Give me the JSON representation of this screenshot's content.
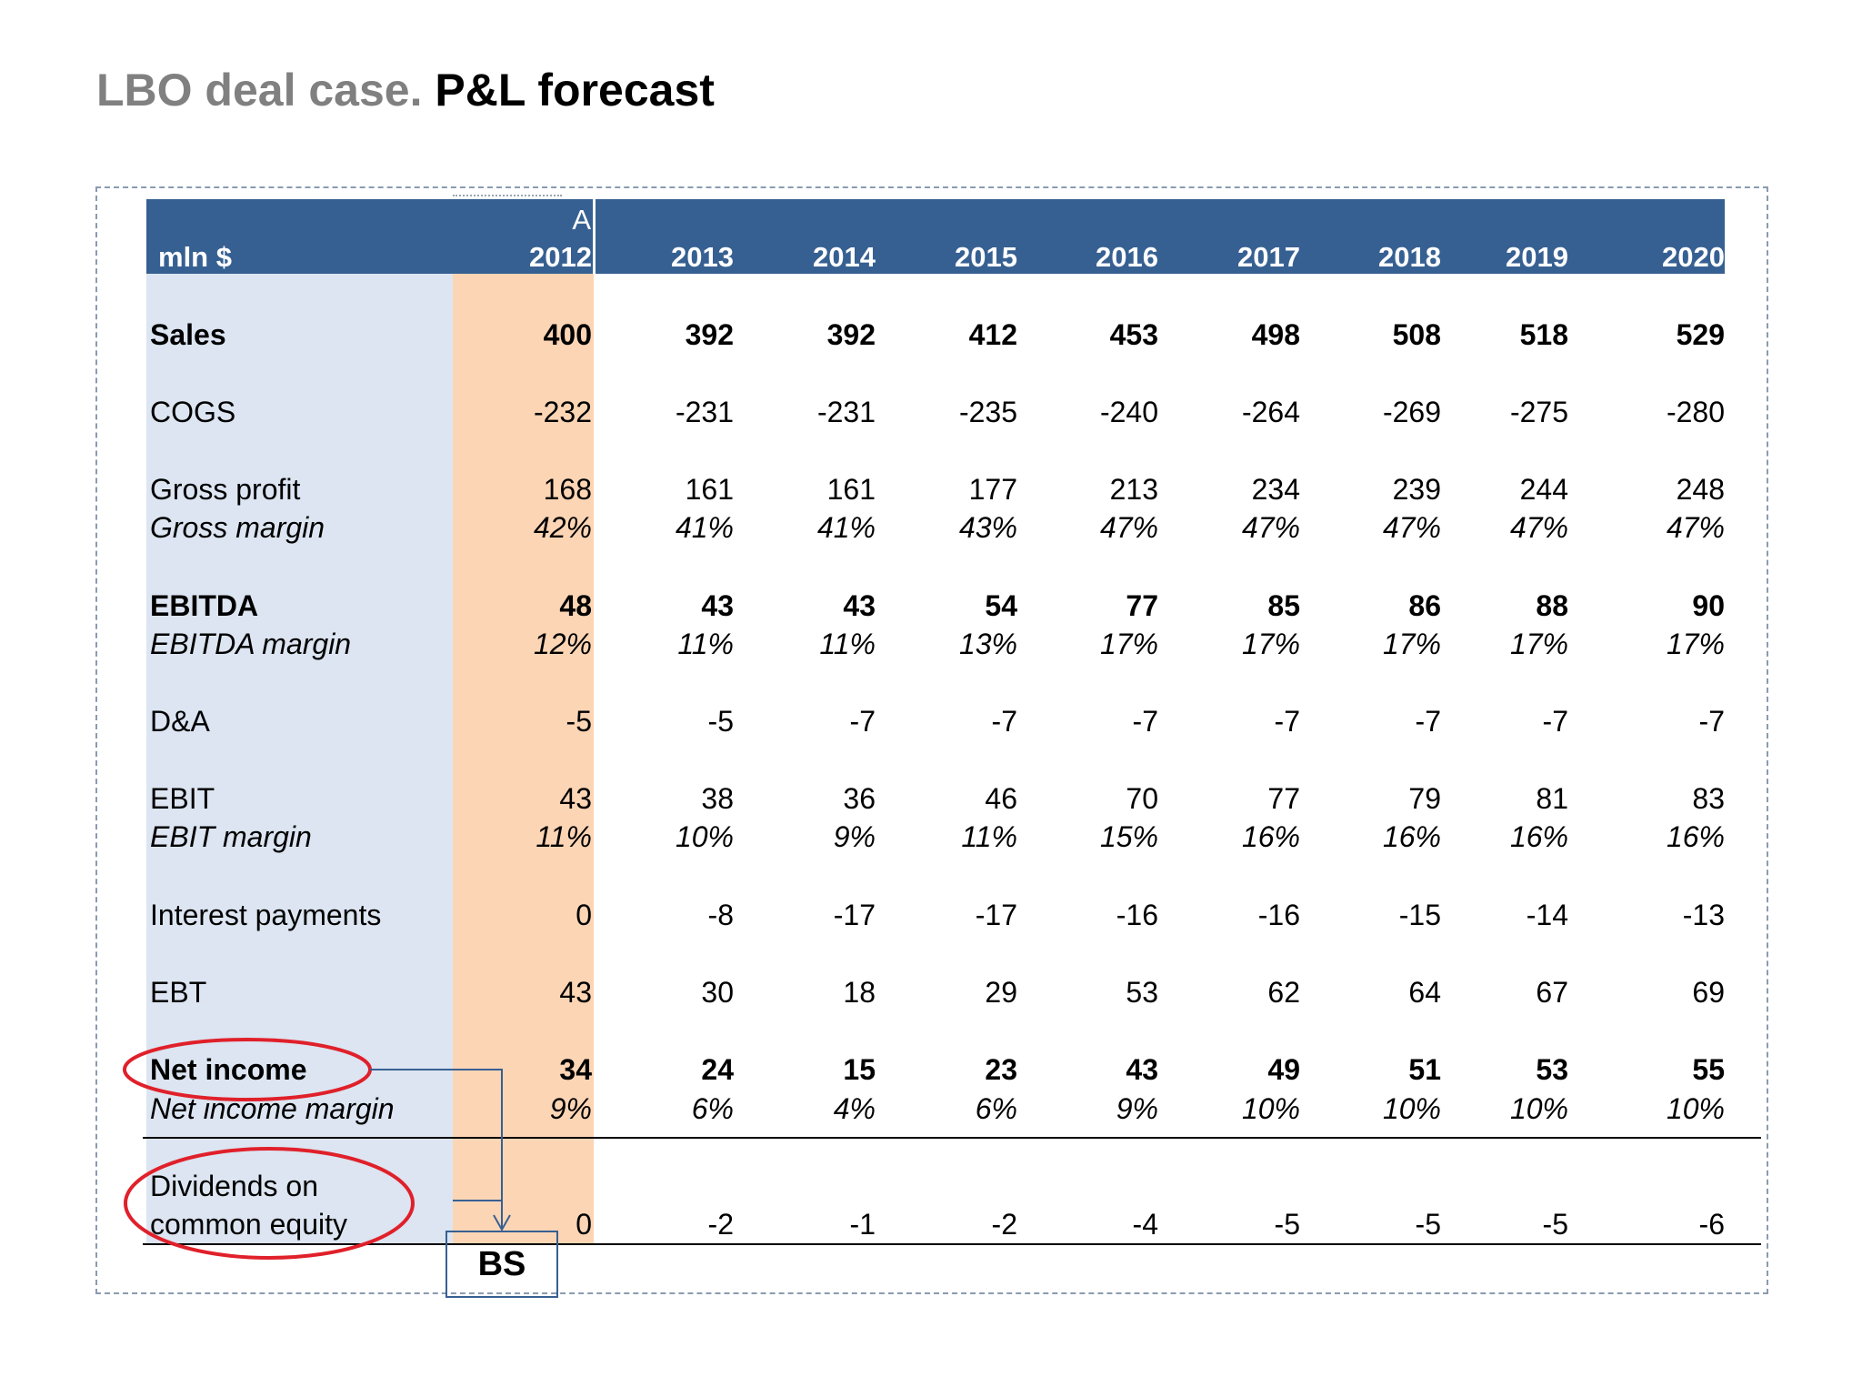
{
  "title": {
    "grey": "LBO deal case.",
    "black": "P&L forecast"
  },
  "table": {
    "unit_label": "mln $",
    "actual_marker": "A",
    "years": [
      "2012",
      "2013",
      "2014",
      "2015",
      "2016",
      "2017",
      "2018",
      "2019",
      "2020"
    ],
    "rows": [
      {
        "label": "Sales",
        "values": [
          "400",
          "392",
          "392",
          "412",
          "453",
          "498",
          "508",
          "518",
          "529"
        ]
      },
      {
        "label": "COGS",
        "values": [
          "-232",
          "-231",
          "-231",
          "-235",
          "-240",
          "-264",
          "-269",
          "-275",
          "-280"
        ]
      },
      {
        "label": "Gross profit",
        "values": [
          "168",
          "161",
          "161",
          "177",
          "213",
          "234",
          "239",
          "244",
          "248"
        ]
      },
      {
        "label": "Gross margin",
        "values": [
          "42%",
          "41%",
          "41%",
          "43%",
          "47%",
          "47%",
          "47%",
          "47%",
          "47%"
        ]
      },
      {
        "label": "EBITDA",
        "values": [
          "48",
          "43",
          "43",
          "54",
          "77",
          "85",
          "86",
          "88",
          "90"
        ]
      },
      {
        "label": "EBITDA margin",
        "values": [
          "12%",
          "11%",
          "11%",
          "13%",
          "17%",
          "17%",
          "17%",
          "17%",
          "17%"
        ]
      },
      {
        "label": "D&A",
        "values": [
          "-5",
          "-5",
          "-7",
          "-7",
          "-7",
          "-7",
          "-7",
          "-7",
          "-7"
        ]
      },
      {
        "label": "EBIT",
        "values": [
          "43",
          "38",
          "36",
          "46",
          "70",
          "77",
          "79",
          "81",
          "83"
        ]
      },
      {
        "label": "EBIT margin",
        "values": [
          "11%",
          "10%",
          "9%",
          "11%",
          "15%",
          "16%",
          "16%",
          "16%",
          "16%"
        ]
      },
      {
        "label": "Interest payments",
        "values": [
          "0",
          "-8",
          "-17",
          "-17",
          "-16",
          "-16",
          "-15",
          "-14",
          "-13"
        ]
      },
      {
        "label": "EBT",
        "values": [
          "43",
          "30",
          "18",
          "29",
          "53",
          "62",
          "64",
          "67",
          "69"
        ]
      },
      {
        "label": "Net income",
        "values": [
          "34",
          "24",
          "15",
          "23",
          "43",
          "49",
          "51",
          "53",
          "55"
        ]
      },
      {
        "label": "Net income margin",
        "values": [
          "9%",
          "6%",
          "4%",
          "6%",
          "9%",
          "10%",
          "10%",
          "10%",
          "10%"
        ]
      },
      {
        "label_line1": "Dividends on",
        "label_line2": "common equity",
        "values": [
          "0",
          "-2",
          "-1",
          "-2",
          "-4",
          "-5",
          "-5",
          "-5",
          "-6"
        ]
      }
    ]
  },
  "annotation": {
    "box_label": "BS",
    "circle_color": "#e0202a",
    "arrow_color": "#376092"
  },
  "colors": {
    "header": "#376092",
    "label_column": "#dce5f1",
    "actual_column": "#fcd5b5"
  }
}
